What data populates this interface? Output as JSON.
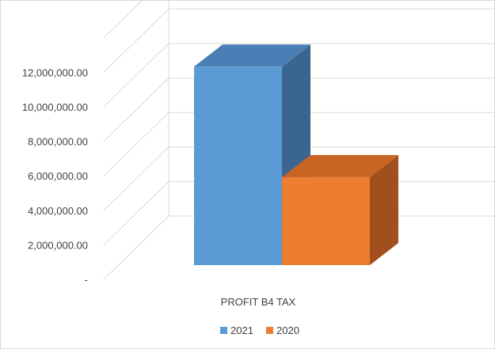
{
  "chart_data": {
    "type": "bar",
    "style": "3d-clustered-column",
    "categories": [
      "PROFIT B4 TAX"
    ],
    "series": [
      {
        "name": "2021",
        "values": [
          11500000
        ],
        "color": "#5B9BD5",
        "side_color": "#3A6591",
        "top_color": "#4A7FB5"
      },
      {
        "name": "2020",
        "values": [
          5100000
        ],
        "color": "#ED7D31",
        "side_color": "#A1501D",
        "top_color": "#C86524"
      }
    ],
    "yticks": [
      "-",
      "2,000,000.00",
      "4,000,000.00",
      "6,000,000.00",
      "8,000,000.00",
      "10,000,000.00",
      "12,000,000.00"
    ],
    "ylim": [
      0,
      14000000
    ],
    "grid": true,
    "legend": "bottom",
    "title": "",
    "xlabel": "",
    "ylabel": ""
  }
}
